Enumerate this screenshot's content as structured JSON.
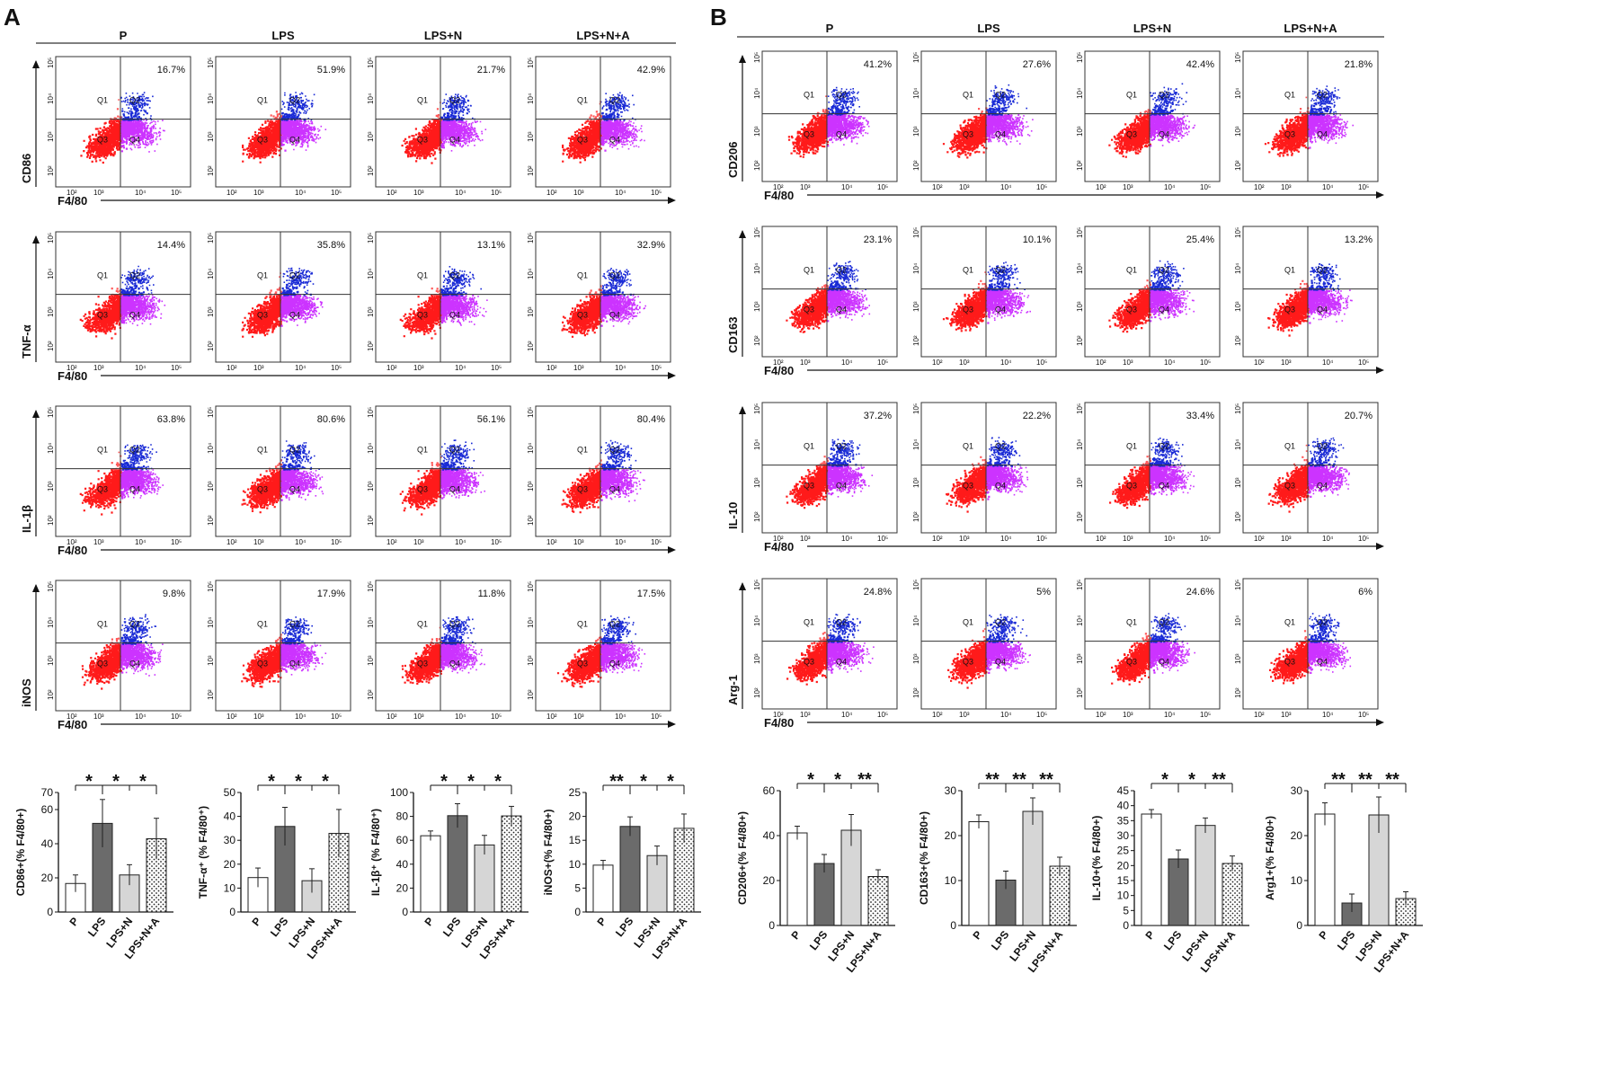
{
  "panels": {
    "A": {
      "label": "A",
      "groups": [
        "P",
        "LPS",
        "LPS+N",
        "LPS+N+A"
      ],
      "x_label": "F4/80",
      "rows": [
        {
          "marker": "CD86",
          "percents": [
            "16.7%",
            "51.9%",
            "21.7%",
            "42.9%"
          ]
        },
        {
          "marker": "TNF-α",
          "percents": [
            "14.4%",
            "35.8%",
            "13.1%",
            "32.9%"
          ]
        },
        {
          "marker": "IL-1β",
          "percents": [
            "63.8%",
            "80.6%",
            "56.1%",
            "80.4%"
          ]
        },
        {
          "marker": "iNOS",
          "percents": [
            "9.8%",
            "17.9%",
            "11.8%",
            "17.5%"
          ]
        }
      ]
    },
    "B": {
      "label": "B",
      "groups": [
        "P",
        "LPS",
        "LPS+N",
        "LPS+N+A"
      ],
      "x_label": "F4/80",
      "rows": [
        {
          "marker": "CD206",
          "percents": [
            "41.2%",
            "27.6%",
            "42.4%",
            "21.8%"
          ]
        },
        {
          "marker": "CD163",
          "percents": [
            "23.1%",
            "10.1%",
            "25.4%",
            "13.2%"
          ]
        },
        {
          "marker": "IL-10",
          "percents": [
            "37.2%",
            "22.2%",
            "33.4%",
            "20.7%"
          ]
        },
        {
          "marker": "Arg-1",
          "percents": [
            "24.8%",
            "5%",
            "24.6%",
            "6%"
          ]
        }
      ]
    }
  },
  "quadrants": [
    "Q1",
    "Q2",
    "Q3",
    "Q4"
  ],
  "ticks": [
    "10²",
    "10³",
    "10⁴",
    "10⁵"
  ],
  "colors": {
    "q3": "#ff1a1a",
    "q4": "#cc33ff",
    "q2": "#1a2bd6",
    "q1": "#ff5a5a",
    "dark_bar": "#6b6b6b",
    "light_bar": "#d6d6d6"
  },
  "chart_data": [
    {
      "type": "bar",
      "panel": "A",
      "ylabel": "CD86+(% F4/80+)",
      "ylim": [
        0,
        70
      ],
      "yticks": [
        0,
        20,
        40,
        60,
        70
      ],
      "categories": [
        "P",
        "LPS",
        "LPS+N",
        "LPS+N+A"
      ],
      "values": [
        16.7,
        51.9,
        21.7,
        42.9
      ],
      "errors": [
        5,
        14,
        6,
        12
      ],
      "sig": [
        "*",
        "*",
        "*"
      ]
    },
    {
      "type": "bar",
      "panel": "A",
      "ylabel": "TNF-α⁺ (% F4/80⁺)",
      "ylim": [
        0,
        50
      ],
      "yticks": [
        0,
        10,
        20,
        30,
        40,
        50
      ],
      "categories": [
        "P",
        "LPS",
        "LPS+N",
        "LPS+N+A"
      ],
      "values": [
        14.4,
        35.8,
        13.1,
        32.9
      ],
      "errors": [
        4,
        8,
        5,
        10
      ],
      "sig": [
        "*",
        "*",
        "*"
      ]
    },
    {
      "type": "bar",
      "panel": "A",
      "ylabel": "IL-1β⁺ (% F4/80⁺)",
      "ylim": [
        0,
        100
      ],
      "yticks": [
        0,
        20,
        40,
        60,
        80,
        100
      ],
      "categories": [
        "P",
        "LPS",
        "LPS+N",
        "LPS+N+A"
      ],
      "values": [
        63.8,
        80.6,
        56.1,
        80.4
      ],
      "errors": [
        4,
        10,
        8,
        8
      ],
      "sig": [
        "*",
        "*",
        "*"
      ]
    },
    {
      "type": "bar",
      "panel": "A",
      "ylabel": "iNOS+(% F4/80+)",
      "ylim": [
        0,
        25
      ],
      "yticks": [
        0,
        5,
        10,
        15,
        20,
        25
      ],
      "categories": [
        "P",
        "LPS",
        "LPS+N",
        "LPS+N+A"
      ],
      "values": [
        9.8,
        17.9,
        11.8,
        17.5
      ],
      "errors": [
        1,
        2,
        2,
        3
      ],
      "sig": [
        "**",
        "*",
        "*"
      ]
    },
    {
      "type": "bar",
      "panel": "B",
      "ylabel": "CD206+(% F4/80+)",
      "ylim": [
        0,
        60
      ],
      "yticks": [
        0,
        20,
        40,
        60
      ],
      "categories": [
        "P",
        "LPS",
        "LPS+N",
        "LPS+N+A"
      ],
      "values": [
        41.2,
        27.6,
        42.4,
        21.8
      ],
      "errors": [
        3,
        4,
        7,
        3
      ],
      "sig": [
        "*",
        "*",
        "**"
      ]
    },
    {
      "type": "bar",
      "panel": "B",
      "ylabel": "CD163+(% F4/80+)",
      "ylim": [
        0,
        30
      ],
      "yticks": [
        0,
        10,
        20,
        30
      ],
      "categories": [
        "P",
        "LPS",
        "LPS+N",
        "LPS+N+A"
      ],
      "values": [
        23.1,
        10.1,
        25.4,
        13.2
      ],
      "errors": [
        1.5,
        2,
        3,
        2
      ],
      "sig": [
        "**",
        "**",
        "**"
      ]
    },
    {
      "type": "bar",
      "panel": "B",
      "ylabel": "IL-10+(% F4/80+)",
      "ylim": [
        0,
        45
      ],
      "yticks": [
        0,
        5,
        10,
        15,
        20,
        25,
        30,
        35,
        40,
        45
      ],
      "categories": [
        "P",
        "LPS",
        "LPS+N",
        "LPS+N+A"
      ],
      "values": [
        37.2,
        22.2,
        33.4,
        20.7
      ],
      "errors": [
        1.5,
        3,
        2.5,
        2.5
      ],
      "sig": [
        "*",
        "*",
        "**"
      ]
    },
    {
      "type": "bar",
      "panel": "B",
      "ylabel": "Arg1+(% F4/80+)",
      "ylim": [
        0,
        30
      ],
      "yticks": [
        0,
        10,
        20,
        30
      ],
      "categories": [
        "P",
        "LPS",
        "LPS+N",
        "LPS+N+A"
      ],
      "values": [
        24.8,
        5,
        24.6,
        6
      ],
      "errors": [
        2.5,
        2,
        4,
        1.5
      ],
      "sig": [
        "**",
        "**",
        "**"
      ]
    }
  ]
}
